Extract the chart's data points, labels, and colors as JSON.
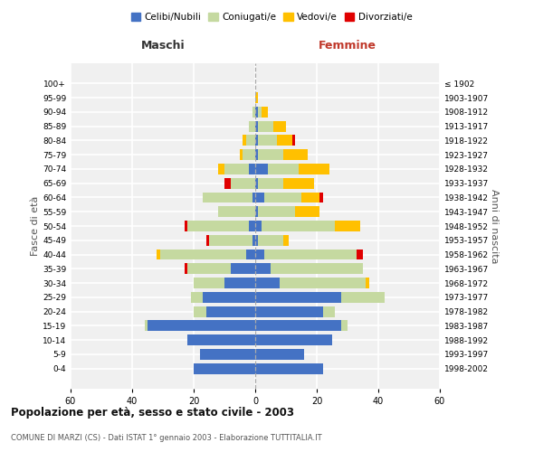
{
  "age_groups": [
    "0-4",
    "5-9",
    "10-14",
    "15-19",
    "20-24",
    "25-29",
    "30-34",
    "35-39",
    "40-44",
    "45-49",
    "50-54",
    "55-59",
    "60-64",
    "65-69",
    "70-74",
    "75-79",
    "80-84",
    "85-89",
    "90-94",
    "95-99",
    "100+"
  ],
  "birth_years": [
    "1998-2002",
    "1993-1997",
    "1988-1992",
    "1983-1987",
    "1978-1982",
    "1973-1977",
    "1968-1972",
    "1963-1967",
    "1958-1962",
    "1953-1957",
    "1948-1952",
    "1943-1947",
    "1938-1942",
    "1933-1937",
    "1928-1932",
    "1923-1927",
    "1918-1922",
    "1913-1917",
    "1908-1912",
    "1903-1907",
    "≤ 1902"
  ],
  "colors": {
    "celibi": "#4472c4",
    "coniugati": "#c5d9a0",
    "vedovi": "#ffc000",
    "divorziati": "#e00000"
  },
  "male": {
    "celibi": [
      20,
      18,
      22,
      35,
      16,
      17,
      10,
      8,
      3,
      1,
      2,
      0,
      1,
      0,
      2,
      0,
      0,
      0,
      0,
      0,
      0
    ],
    "coniugati": [
      0,
      0,
      0,
      1,
      4,
      4,
      10,
      14,
      28,
      14,
      20,
      12,
      16,
      8,
      8,
      4,
      3,
      2,
      1,
      0,
      0
    ],
    "vedovi": [
      0,
      0,
      0,
      0,
      0,
      0,
      0,
      0,
      1,
      0,
      0,
      0,
      0,
      0,
      2,
      1,
      1,
      0,
      0,
      0,
      0
    ],
    "divorziati": [
      0,
      0,
      0,
      0,
      0,
      0,
      0,
      1,
      0,
      1,
      1,
      0,
      0,
      2,
      0,
      0,
      0,
      0,
      0,
      0,
      0
    ]
  },
  "female": {
    "celibi": [
      22,
      16,
      25,
      28,
      22,
      28,
      8,
      5,
      3,
      1,
      2,
      1,
      3,
      1,
      4,
      1,
      1,
      1,
      1,
      0,
      0
    ],
    "coniugati": [
      0,
      0,
      0,
      2,
      4,
      14,
      28,
      30,
      30,
      8,
      24,
      12,
      12,
      8,
      10,
      8,
      6,
      5,
      1,
      0,
      0
    ],
    "vedovi": [
      0,
      0,
      0,
      0,
      0,
      0,
      1,
      0,
      0,
      2,
      8,
      8,
      6,
      10,
      10,
      8,
      5,
      4,
      2,
      1,
      0
    ],
    "divorziati": [
      0,
      0,
      0,
      0,
      0,
      0,
      0,
      0,
      2,
      0,
      0,
      0,
      1,
      0,
      0,
      0,
      1,
      0,
      0,
      0,
      0
    ]
  },
  "xlim": 60,
  "title": "Popolazione per età, sesso e stato civile - 2003",
  "subtitle": "COMUNE DI MARZI (CS) - Dati ISTAT 1° gennaio 2003 - Elaborazione TUTTITALIA.IT",
  "xlabel_left": "Maschi",
  "xlabel_right": "Femmine",
  "ylabel_left": "Fasce di età",
  "ylabel_right": "Anni di nascita",
  "legend_labels": [
    "Celibi/Nubili",
    "Coniugati/e",
    "Vedovi/e",
    "Divorziati/e"
  ],
  "bg_color": "#f0f0f0",
  "grid_color": "#ffffff",
  "bar_height": 0.75
}
